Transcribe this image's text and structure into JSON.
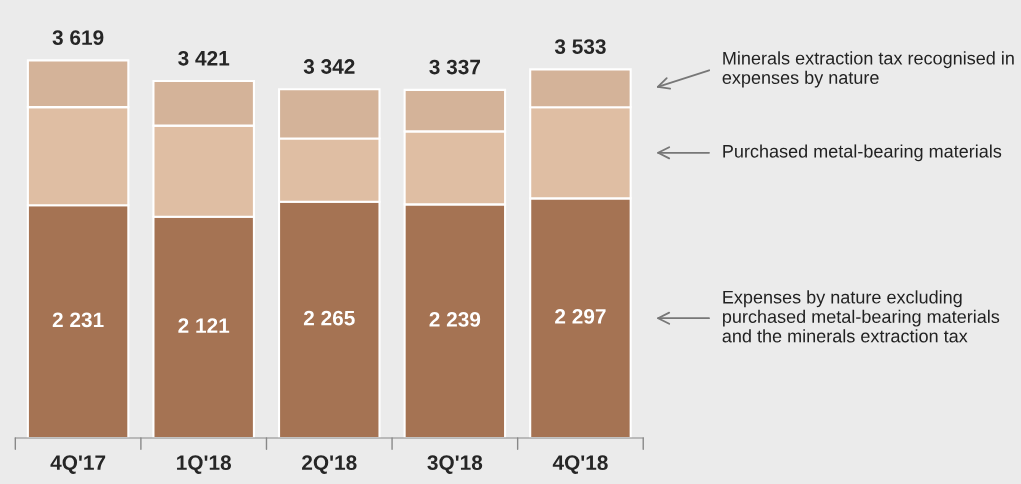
{
  "chart_data": {
    "type": "bar",
    "stacked": true,
    "categories": [
      "4Q'17",
      "1Q'18",
      "2Q'18",
      "3Q'18",
      "4Q'18"
    ],
    "series": [
      {
        "name": "Expenses by nature excluding purchased metal-bearing materials and the minerals extraction tax",
        "color": "#a57353",
        "values": [
          2231,
          2121,
          2265,
          2239,
          2297
        ],
        "value_labels": [
          "2 231",
          "2 121",
          "2 265",
          "2 239",
          "2 297"
        ]
      },
      {
        "name": "Purchased metal-bearing materials",
        "color": "#dfbea3",
        "values": [
          940,
          873,
          605,
          700,
          873
        ]
      },
      {
        "name": "Minerals extraction tax recognised in expenses by nature",
        "color": "#d4b399",
        "values": [
          448,
          427,
          472,
          398,
          363
        ]
      }
    ],
    "totals": [
      "3 619",
      "3 421",
      "3 342",
      "3 337",
      "3 533"
    ],
    "legend": "right"
  }
}
